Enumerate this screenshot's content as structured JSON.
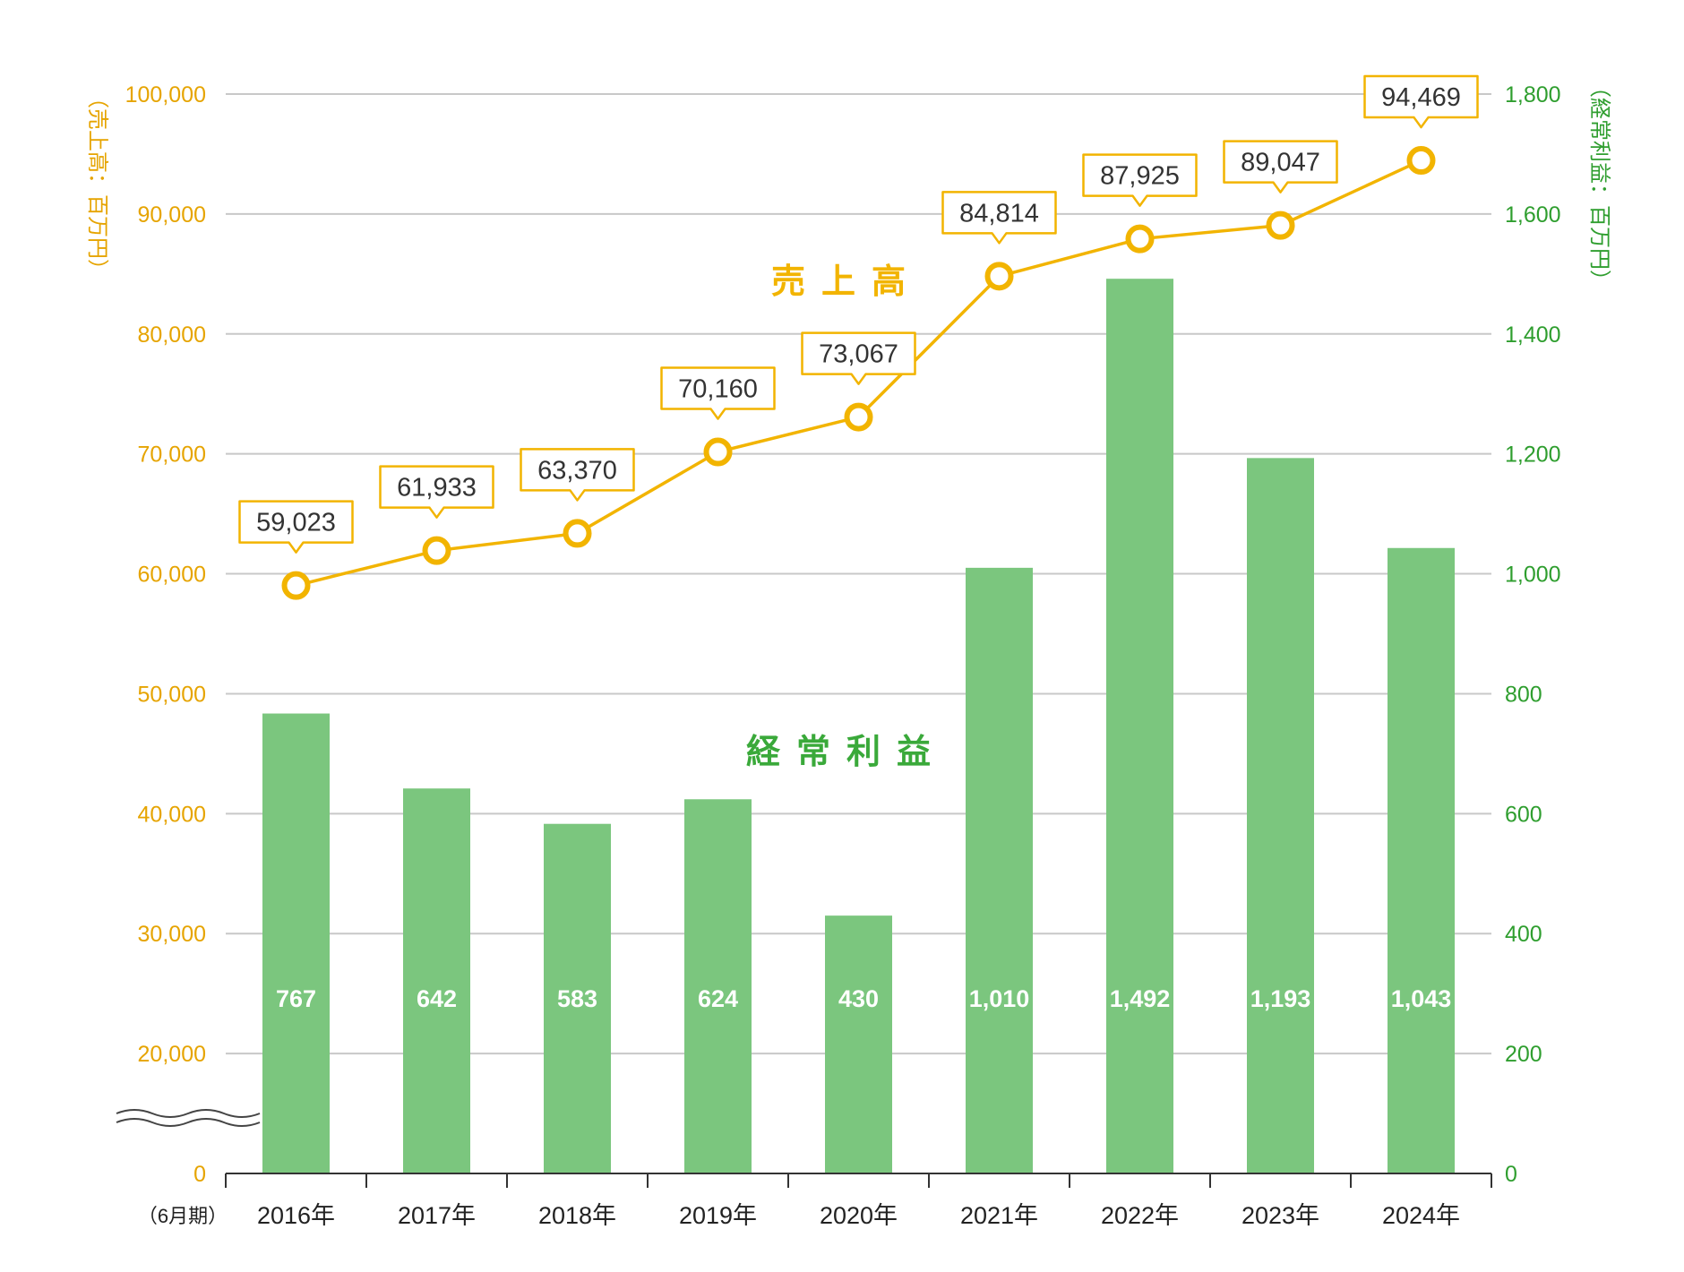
{
  "chart_data": {
    "type": "bar+line",
    "categories": [
      "2016年",
      "2017年",
      "2018年",
      "2019年",
      "2020年",
      "2021年",
      "2022年",
      "2023年",
      "2024年"
    ],
    "period_label": "（6月期）",
    "series": [
      {
        "name": "売上高",
        "type": "line",
        "axis": "left",
        "values": [
          59023,
          61933,
          63370,
          70160,
          73067,
          84814,
          87925,
          89047,
          94469
        ],
        "labels": [
          "59,023",
          "61,933",
          "63,370",
          "70,160",
          "73,067",
          "84,814",
          "87,925",
          "89,047",
          "94,469"
        ],
        "color": "#f2b400"
      },
      {
        "name": "経常利益",
        "type": "bar",
        "axis": "right",
        "values": [
          767,
          642,
          583,
          624,
          430,
          1010,
          1492,
          1193,
          1043
        ],
        "labels": [
          "767",
          "642",
          "583",
          "624",
          "430",
          "1,010",
          "1,492",
          "1,193",
          "1,043"
        ],
        "color": "#7bc67e"
      }
    ],
    "left_axis": {
      "title": "（売上高：百万円）",
      "ticks": [
        "0",
        "20,000",
        "30,000",
        "40,000",
        "50,000",
        "60,000",
        "70,000",
        "80,000",
        "90,000",
        "100,000"
      ],
      "tick_values": [
        0,
        20000,
        30000,
        40000,
        50000,
        60000,
        70000,
        80000,
        90000,
        100000
      ],
      "range": [
        10000,
        100000
      ],
      "break": true,
      "color": "#e6a400"
    },
    "right_axis": {
      "title": "（経常利益：百万円）",
      "ticks": [
        "0",
        "200",
        "400",
        "600",
        "800",
        "1,000",
        "1,200",
        "1,400",
        "1,600",
        "1,800"
      ],
      "tick_values": [
        0,
        200,
        400,
        600,
        800,
        1000,
        1200,
        1400,
        1600,
        1800
      ],
      "range": [
        0,
        1800
      ],
      "color": "#2f9e2f"
    },
    "grid": true
  },
  "colors": {
    "gridline": "#c8c8c8",
    "axis": "#333333",
    "callout_border": "#f2b400",
    "callout_text": "#333333"
  }
}
